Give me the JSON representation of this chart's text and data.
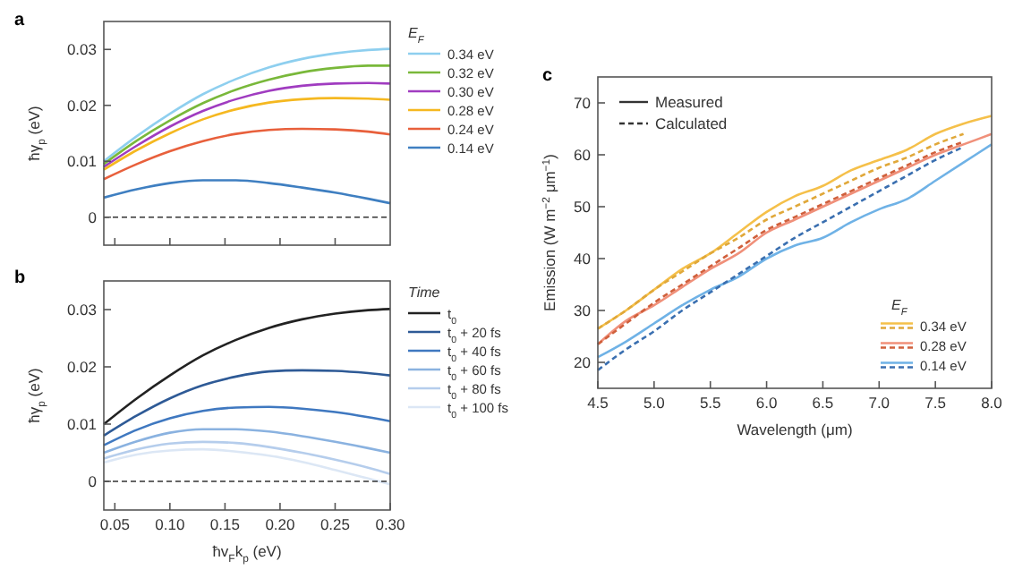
{
  "chart_data": [
    {
      "type": "line",
      "title": "a",
      "ylabel": "ħγ$_{p}$ (eV)",
      "legend_title": "E$_{F}$",
      "legend": "right",
      "grid": false,
      "tick_labels": "y",
      "marker": "none",
      "line_style": "solid",
      "x": [
        0.04,
        0.07,
        0.1,
        0.13,
        0.16,
        0.19,
        0.22,
        0.25,
        0.28,
        0.3
      ],
      "xlim": [
        0.04,
        0.3
      ],
      "xticks": [
        {
          "value": 0.05,
          "label": null
        },
        {
          "value": 0.1,
          "label": null
        },
        {
          "value": 0.15,
          "label": null
        },
        {
          "value": 0.2,
          "label": null
        },
        {
          "value": 0.25,
          "label": null
        }
      ],
      "ylim": [
        -0.005,
        0.035
      ],
      "yticks": [
        0,
        0.01,
        0.02,
        0.03
      ],
      "ref_lines": [
        {
          "axis": "y",
          "value": 0,
          "color": "#333333",
          "line_style": "dashed"
        }
      ],
      "series": [
        {
          "name": "0.34 eV",
          "color": "#8ecfef",
          "values": [
            0.01,
            0.0145,
            0.0185,
            0.022,
            0.0247,
            0.0268,
            0.0283,
            0.0293,
            0.0299,
            0.0301
          ]
        },
        {
          "name": "0.32 eV",
          "color": "#79b83a",
          "values": [
            0.0095,
            0.0137,
            0.0173,
            0.0204,
            0.0228,
            0.0246,
            0.0259,
            0.0267,
            0.0271,
            0.0271
          ]
        },
        {
          "name": "0.30 eV",
          "color": "#a03cc0",
          "values": [
            0.009,
            0.0128,
            0.0162,
            0.019,
            0.0211,
            0.0226,
            0.0235,
            0.0239,
            0.024,
            0.0239
          ]
        },
        {
          "name": "0.28 eV",
          "color": "#f5b820",
          "values": [
            0.0085,
            0.012,
            0.015,
            0.0175,
            0.0193,
            0.0205,
            0.0211,
            0.0213,
            0.0212,
            0.021
          ]
        },
        {
          "name": "0.24 eV",
          "color": "#e8603c",
          "values": [
            0.0068,
            0.0095,
            0.0118,
            0.0136,
            0.0149,
            0.0156,
            0.0158,
            0.0157,
            0.0153,
            0.0148
          ]
        },
        {
          "name": "0.14 eV",
          "color": "#3f7fc1",
          "values": [
            0.0035,
            0.005,
            0.0061,
            0.0066,
            0.0066,
            0.0061,
            0.0053,
            0.0044,
            0.0033,
            0.0025
          ]
        }
      ]
    },
    {
      "type": "line",
      "title": "b",
      "xlabel": "ħv$_{F}$k$_{p}$ (eV)",
      "ylabel": "ħγ$_{p}$ (eV)",
      "legend_title": "Time",
      "legend": "right",
      "grid": false,
      "marker": "none",
      "line_style": "solid",
      "x": [
        0.04,
        0.07,
        0.1,
        0.13,
        0.16,
        0.19,
        0.22,
        0.25,
        0.28,
        0.3
      ],
      "xlim": [
        0.04,
        0.3
      ],
      "xticks": [
        {
          "value": 0.05,
          "label": "0.05"
        },
        {
          "value": 0.1,
          "label": "0.10"
        },
        {
          "value": 0.15,
          "label": "0.15"
        },
        {
          "value": 0.2,
          "label": "0.20"
        },
        {
          "value": 0.25,
          "label": "0.25"
        },
        {
          "value": 0.3,
          "label": "0.30"
        }
      ],
      "ylim": [
        -0.005,
        0.035
      ],
      "yticks": [
        0,
        0.01,
        0.02,
        0.03
      ],
      "ref_lines": [
        {
          "axis": "y",
          "value": 0,
          "color": "#333333",
          "line_style": "dashed"
        }
      ],
      "series": [
        {
          "name": "t$_{0}$",
          "color": "#222222",
          "values": [
            0.01,
            0.0145,
            0.0185,
            0.022,
            0.0247,
            0.0268,
            0.0283,
            0.0293,
            0.0299,
            0.0301
          ]
        },
        {
          "name": "t$_{0}$ + 20 fs",
          "color": "#2e5a96",
          "values": [
            0.008,
            0.0115,
            0.0145,
            0.0168,
            0.0183,
            0.0192,
            0.0194,
            0.0193,
            0.0189,
            0.0185
          ]
        },
        {
          "name": "t$_{0}$ + 40 fs",
          "color": "#3f78c0",
          "values": [
            0.0063,
            0.009,
            0.011,
            0.0123,
            0.0129,
            0.013,
            0.0127,
            0.0121,
            0.0112,
            0.0105
          ]
        },
        {
          "name": "t$_{0}$ + 60 fs",
          "color": "#8ab2e0",
          "values": [
            0.005,
            0.007,
            0.0085,
            0.0091,
            0.0091,
            0.0087,
            0.0079,
            0.0069,
            0.0058,
            0.005
          ]
        },
        {
          "name": "t$_{0}$ + 80 fs",
          "color": "#b5cdec",
          "values": [
            0.004,
            0.0056,
            0.0066,
            0.0069,
            0.0067,
            0.006,
            0.005,
            0.0038,
            0.0024,
            0.0013
          ]
        },
        {
          "name": "t$_{0}$ + 100 fs",
          "color": "#dce7f5",
          "values": [
            0.0033,
            0.0047,
            0.0054,
            0.0056,
            0.0052,
            0.0045,
            0.0034,
            0.002,
            0.0005,
            -0.0005
          ]
        }
      ]
    },
    {
      "type": "line",
      "title": "c",
      "xlabel": "Wavelength (μm)",
      "ylabel": "Emission (W m$^{−2}$ μm$^{−1}$)",
      "legend_title": "E$_{F}$",
      "legend": "bottom right",
      "grid": false,
      "marker": "none",
      "annotations": [
        "Measured",
        "Calculated"
      ],
      "xlim": [
        4.5,
        8.0
      ],
      "xticks": [
        {
          "value": 4.5,
          "label": "4.5"
        },
        {
          "value": 5,
          "label": "5.0"
        },
        {
          "value": 5.5,
          "label": "5.5"
        },
        {
          "value": 6,
          "label": "6.0"
        },
        {
          "value": 6.5,
          "label": "6.5"
        },
        {
          "value": 7,
          "label": "7.0"
        },
        {
          "value": 7.5,
          "label": "7.5"
        },
        {
          "value": 8,
          "label": "8.0"
        }
      ],
      "ylim": [
        15,
        75
      ],
      "yticks": [
        20,
        30,
        40,
        50,
        60,
        70
      ],
      "series": [
        {
          "name": "0.34 eV",
          "color": "#f5c04a",
          "line_style": "solid",
          "x": [
            4.5,
            4.75,
            5,
            5.25,
            5.5,
            5.75,
            6,
            6.25,
            6.5,
            6.75,
            7,
            7.25,
            7.5,
            7.75,
            8
          ],
          "values": [
            26.5,
            30,
            34,
            38,
            41,
            45,
            49,
            52,
            54,
            57,
            59,
            61,
            64,
            66,
            67.5
          ]
        },
        {
          "color": "#e0a83a",
          "line_style": "dashed",
          "x": [
            4.5,
            4.75,
            5,
            5.25,
            5.5,
            5.75,
            6,
            6.25,
            6.5,
            6.75,
            7,
            7.25,
            7.5,
            7.75
          ],
          "values": [
            26.5,
            30,
            34,
            37.5,
            41,
            44,
            47.5,
            50,
            52.5,
            55,
            57.5,
            59.5,
            62,
            64
          ]
        },
        {
          "name": "0.28 eV",
          "color": "#f0907a",
          "line_style": "solid",
          "x": [
            4.5,
            4.75,
            5,
            5.25,
            5.5,
            5.75,
            6,
            6.25,
            6.5,
            6.75,
            7,
            7.25,
            7.5,
            7.75,
            8
          ],
          "values": [
            23.5,
            28,
            31,
            34.5,
            38,
            41,
            45,
            47.5,
            50,
            52.5,
            55,
            57.5,
            60,
            62,
            64
          ]
        },
        {
          "color": "#d0603c",
          "line_style": "dashed",
          "x": [
            4.5,
            4.75,
            5,
            5.25,
            5.5,
            5.75,
            6,
            6.25,
            6.5,
            6.75,
            7,
            7.25,
            7.5,
            7.75
          ],
          "values": [
            23.5,
            27.5,
            31.5,
            35,
            38.5,
            42,
            45.5,
            48,
            50.5,
            53,
            55.5,
            58,
            60.5,
            62.5
          ]
        },
        {
          "name": "0.14 eV",
          "color": "#6fb2e6",
          "line_style": "solid",
          "x": [
            4.5,
            4.75,
            5,
            5.25,
            5.5,
            5.75,
            6,
            6.25,
            6.5,
            6.75,
            7,
            7.25,
            7.5,
            7.75,
            8
          ],
          "values": [
            21,
            24,
            27.5,
            31,
            34,
            36.5,
            40,
            42.5,
            44,
            47,
            49.5,
            51.5,
            55,
            58.5,
            62
          ]
        },
        {
          "color": "#3a6fb0",
          "line_style": "dashed",
          "x": [
            4.5,
            4.75,
            5,
            5.25,
            5.5,
            5.75,
            6,
            6.25,
            6.5,
            6.75,
            7,
            7.25,
            7.5,
            7.75
          ],
          "values": [
            18.5,
            22.5,
            26,
            30,
            33.5,
            37,
            40.5,
            44,
            47,
            50,
            53,
            56,
            59,
            61.5
          ]
        }
      ]
    }
  ]
}
